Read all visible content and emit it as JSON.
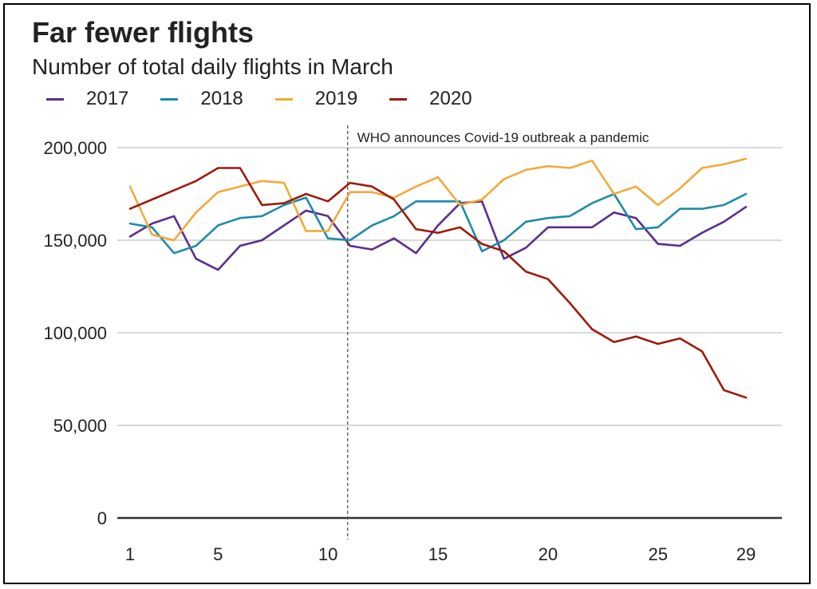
{
  "chart_data": {
    "type": "line",
    "title": "Far fewer flights",
    "subtitle": "Number of total daily flights in March",
    "x": [
      1,
      2,
      3,
      4,
      5,
      6,
      7,
      8,
      9,
      10,
      11,
      12,
      13,
      14,
      15,
      16,
      17,
      18,
      19,
      20,
      21,
      22,
      23,
      24,
      25,
      26,
      27,
      28,
      29
    ],
    "xticks": [
      1,
      5,
      10,
      15,
      20,
      25,
      29
    ],
    "yticks": [
      0,
      50000,
      100000,
      150000,
      200000
    ],
    "ytick_labels": [
      "0",
      "50,000",
      "100,000",
      "150,000",
      "200,000"
    ],
    "xlim": [
      1,
      29
    ],
    "ylim": [
      0,
      200000
    ],
    "series": [
      {
        "name": "2017",
        "color": "#5b2d8c",
        "values": [
          152000,
          159000,
          163000,
          140000,
          134000,
          147000,
          150000,
          158000,
          166000,
          163000,
          147000,
          145000,
          151000,
          143000,
          158000,
          170000,
          171000,
          140000,
          146000,
          157000,
          157000,
          157000,
          165000,
          162000,
          148000,
          147000,
          154000,
          160000,
          168000
        ]
      },
      {
        "name": "2018",
        "color": "#1f8aa8",
        "values": [
          159000,
          157000,
          143000,
          147000,
          158000,
          162000,
          163000,
          169000,
          173000,
          151000,
          150000,
          158000,
          163000,
          171000,
          171000,
          171000,
          144000,
          150000,
          160000,
          162000,
          163000,
          170000,
          175000,
          156000,
          157000,
          167000,
          167000,
          169000,
          175000
        ]
      },
      {
        "name": "2019",
        "color": "#f2a93b",
        "values": [
          179000,
          153000,
          150000,
          165000,
          176000,
          179000,
          182000,
          181000,
          155000,
          155000,
          176000,
          176000,
          173000,
          179000,
          184000,
          169000,
          172000,
          183000,
          188000,
          190000,
          189000,
          193000,
          175000,
          179000,
          169000,
          178000,
          189000,
          191000,
          194000
        ]
      },
      {
        "name": "2020",
        "color": "#9b1b0c",
        "values": [
          167000,
          172000,
          177000,
          182000,
          189000,
          189000,
          169000,
          170000,
          175000,
          171000,
          181000,
          179000,
          172000,
          156000,
          154000,
          157000,
          148000,
          144000,
          133000,
          129000,
          116000,
          102000,
          95000,
          98000,
          94000,
          97000,
          90000,
          69000,
          65000
        ]
      }
    ],
    "annotation": {
      "x": 11,
      "text": "WHO announces Covid-19 outbreak a pandemic"
    }
  }
}
